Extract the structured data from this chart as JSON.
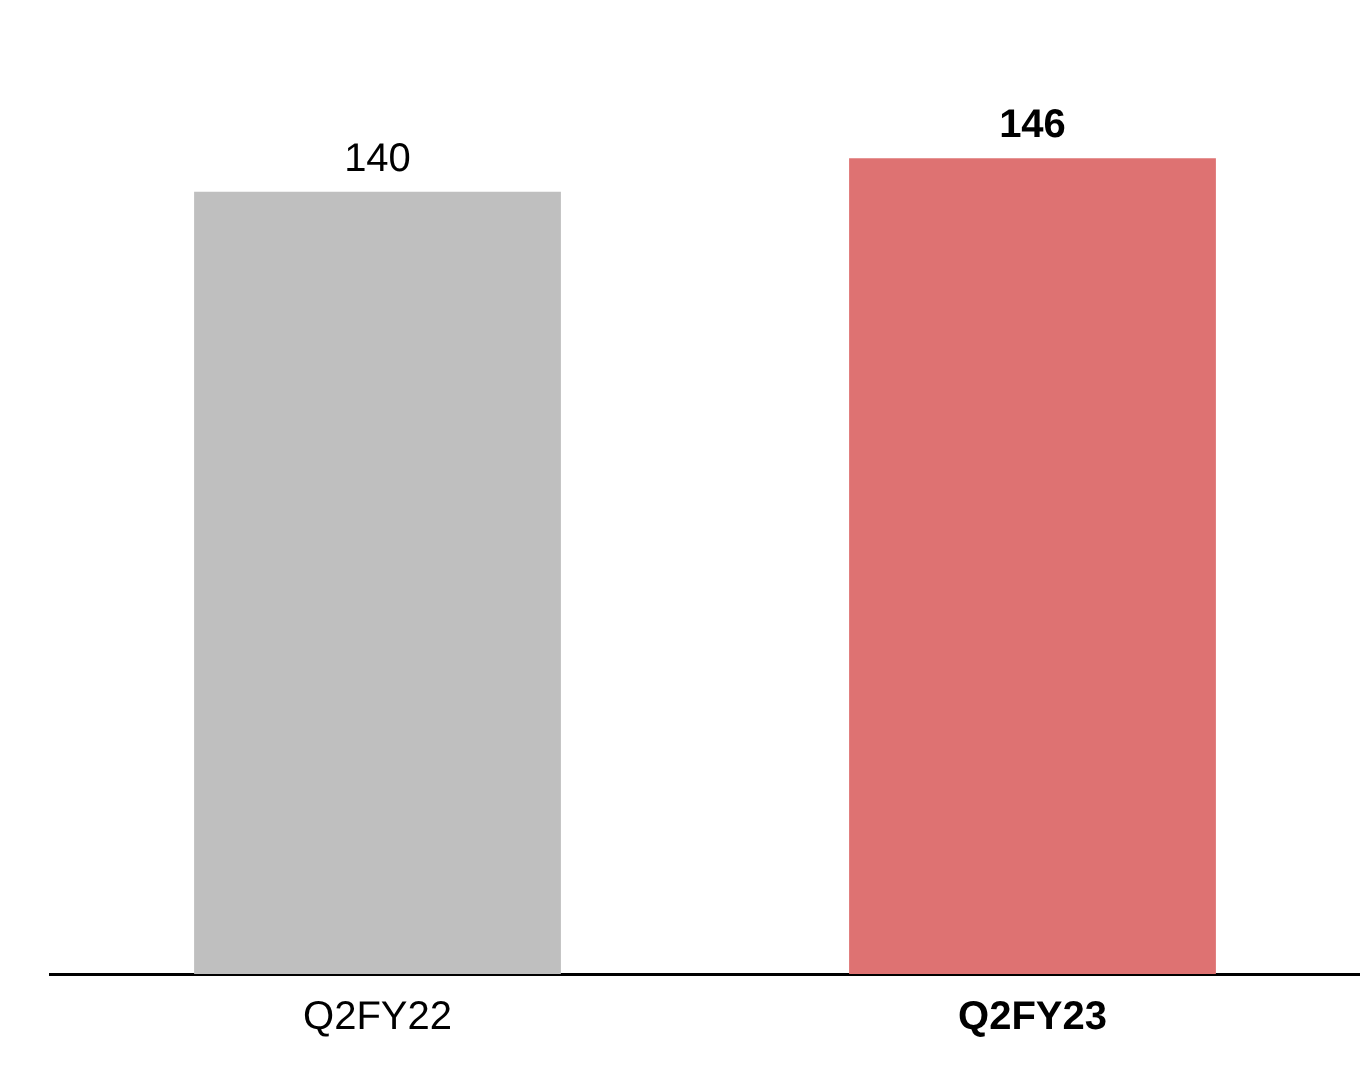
{
  "chart_data": {
    "type": "bar",
    "categories": [
      "Q2FY22",
      "Q2FY23"
    ],
    "values": [
      140,
      146
    ],
    "colors": [
      "#bfbfbf",
      "#de7272"
    ],
    "data_labels": true,
    "grid": false,
    "legend": false
  }
}
